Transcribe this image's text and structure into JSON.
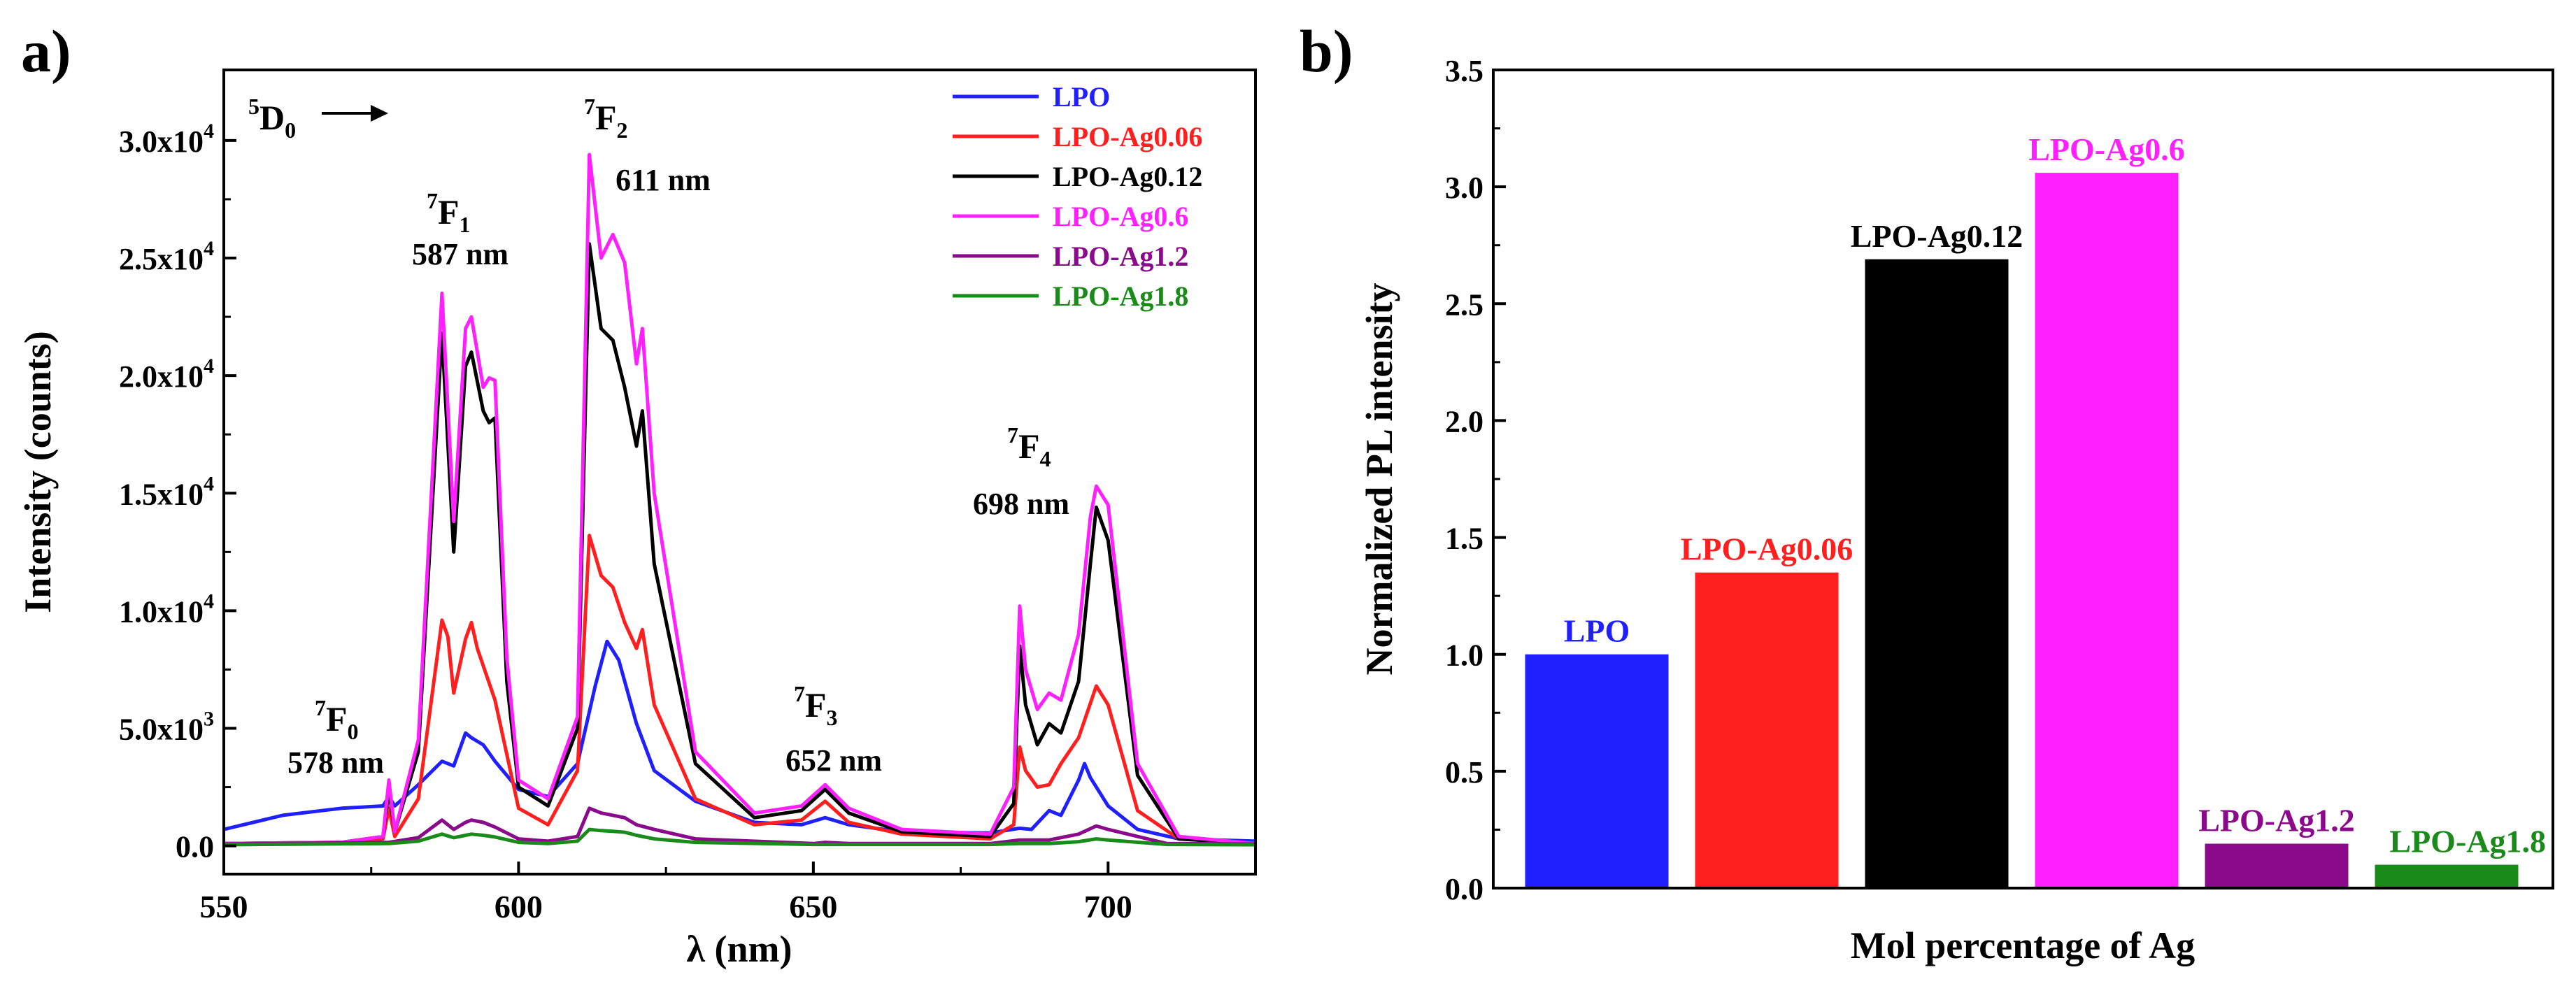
{
  "chart_data": [
    {
      "panel_label": "a)",
      "type": "line",
      "xlabel": "λ (nm)",
      "ylabel": "Intensity (counts)",
      "xlim": [
        550,
        725
      ],
      "ylim": [
        -1200,
        33000
      ],
      "xticks": [
        550,
        600,
        650,
        700
      ],
      "yticks": [
        {
          "value": 0,
          "label": "0.0"
        },
        {
          "value": 5000,
          "label": "5.0x10",
          "exp": "3"
        },
        {
          "value": 10000,
          "label": "1.0x10",
          "exp": "4"
        },
        {
          "value": 15000,
          "label": "1.5x10",
          "exp": "4"
        },
        {
          "value": 20000,
          "label": "2.0x10",
          "exp": "4"
        },
        {
          "value": 25000,
          "label": "2.5x10",
          "exp": "4"
        },
        {
          "value": 30000,
          "label": "3.0x10",
          "exp": "4"
        }
      ],
      "grid": false,
      "legend_position": "top-right",
      "series": [
        {
          "name": "LPO",
          "color": "#1f1fff",
          "x": [
            550,
            560,
            570,
            577,
            578,
            579,
            583,
            587,
            589,
            591,
            592,
            594,
            596,
            600,
            605,
            610,
            613,
            615,
            617,
            620,
            623,
            630,
            640,
            648,
            652,
            656,
            665,
            680,
            685,
            687,
            690,
            692,
            695,
            696,
            697,
            700,
            705,
            712,
            725
          ],
          "y": [
            700,
            1300,
            1600,
            1700,
            2100,
            1700,
            2600,
            3600,
            3400,
            4800,
            4600,
            4300,
            3600,
            2400,
            2100,
            3500,
            6800,
            8700,
            7900,
            5200,
            3200,
            1900,
            1000,
            900,
            1200,
            900,
            600,
            550,
            750,
            700,
            1500,
            1300,
            2800,
            3500,
            2900,
            1700,
            700,
            300,
            200
          ]
        },
        {
          "name": "LPO-Ag0.06",
          "color": "#ff1f1f",
          "x": [
            550,
            570,
            577,
            578,
            579,
            583,
            587,
            588,
            589,
            591,
            592,
            593,
            596,
            600,
            605,
            610,
            612,
            614,
            616,
            618,
            620,
            621,
            623,
            630,
            640,
            648,
            652,
            656,
            665,
            680,
            684,
            685,
            686,
            688,
            690,
            692,
            695,
            698,
            700,
            705,
            712,
            725
          ],
          "y": [
            100,
            150,
            300,
            1600,
            400,
            2000,
            9600,
            8900,
            6500,
            8800,
            9500,
            8400,
            6200,
            1600,
            900,
            3200,
            13200,
            11500,
            11000,
            9500,
            8400,
            9200,
            6000,
            2000,
            900,
            1100,
            1900,
            1000,
            500,
            300,
            900,
            4200,
            3200,
            2500,
            2600,
            3500,
            4600,
            6800,
            6000,
            1500,
            300,
            100
          ]
        },
        {
          "name": "LPO-Ag0.12",
          "color": "#000000",
          "x": [
            550,
            570,
            577,
            578,
            579,
            583,
            587,
            589,
            591,
            592,
            594,
            595,
            596,
            598,
            600,
            605,
            610,
            612,
            614,
            616,
            618,
            620,
            621,
            623,
            630,
            640,
            648,
            652,
            656,
            665,
            680,
            684,
            685,
            686,
            688,
            690,
            692,
            695,
            697,
            698,
            700,
            705,
            712,
            725
          ],
          "y": [
            100,
            150,
            400,
            2400,
            600,
            4000,
            21800,
            12500,
            20400,
            21000,
            18500,
            18000,
            18200,
            7000,
            2500,
            1700,
            5000,
            25600,
            22000,
            21500,
            19500,
            17000,
            18500,
            12000,
            3500,
            1200,
            1500,
            2400,
            1400,
            600,
            400,
            1800,
            8500,
            6000,
            4300,
            5200,
            4800,
            7000,
            12000,
            14400,
            13000,
            3000,
            300,
            100
          ]
        },
        {
          "name": "LPO-Ag0.6",
          "color": "#ff1fff",
          "x": [
            550,
            570,
            577,
            578,
            579,
            583,
            587,
            589,
            591,
            592,
            594,
            595,
            596,
            598,
            600,
            605,
            610,
            612,
            614,
            616,
            618,
            620,
            621,
            623,
            630,
            640,
            648,
            652,
            656,
            665,
            680,
            684,
            685,
            686,
            688,
            690,
            692,
            695,
            697,
            698,
            700,
            705,
            712,
            725
          ],
          "y": [
            100,
            150,
            400,
            2800,
            600,
            4500,
            23500,
            13800,
            22000,
            22500,
            19500,
            19900,
            19800,
            8000,
            2800,
            2000,
            5500,
            29400,
            25000,
            26000,
            24800,
            20500,
            22000,
            15000,
            4000,
            1400,
            1700,
            2600,
            1600,
            700,
            500,
            2500,
            10200,
            7500,
            5800,
            6500,
            6200,
            9000,
            14000,
            15300,
            14500,
            3500,
            400,
            100
          ]
        },
        {
          "name": "LPO-Ag1.2",
          "color": "#8b0a8b",
          "x": [
            550,
            578,
            583,
            587,
            589,
            591,
            592,
            594,
            596,
            600,
            605,
            610,
            612,
            614,
            616,
            618,
            620,
            623,
            630,
            650,
            652,
            656,
            680,
            685,
            690,
            695,
            698,
            700,
            710,
            725
          ],
          "y": [
            80,
            150,
            350,
            1100,
            700,
            1000,
            1100,
            1000,
            800,
            300,
            200,
            400,
            1600,
            1400,
            1300,
            1200,
            900,
            700,
            300,
            100,
            150,
            100,
            100,
            250,
            250,
            500,
            850,
            700,
            100,
            80
          ]
        },
        {
          "name": "LPO-Ag1.8",
          "color": "#1a8a1a",
          "x": [
            550,
            578,
            583,
            587,
            589,
            591,
            592,
            594,
            596,
            600,
            605,
            610,
            612,
            614,
            616,
            618,
            620,
            623,
            630,
            650,
            680,
            685,
            690,
            695,
            698,
            700,
            710,
            725
          ],
          "y": [
            50,
            100,
            200,
            500,
            350,
            450,
            500,
            450,
            380,
            150,
            100,
            200,
            700,
            650,
            620,
            580,
            450,
            300,
            150,
            60,
            60,
            100,
            100,
            180,
            300,
            250,
            60,
            50
          ]
        }
      ],
      "annotations": [
        {
          "text": "⁵D₀ →",
          "base": "D",
          "sup": "5",
          "sub": "0",
          "arrow": true
        },
        {
          "base": "F",
          "sup": "7",
          "sub": "0",
          "text": "578 nm"
        },
        {
          "base": "F",
          "sup": "7",
          "sub": "1",
          "text": "587 nm"
        },
        {
          "base": "F",
          "sup": "7",
          "sub": "2",
          "text": "611 nm"
        },
        {
          "base": "F",
          "sup": "7",
          "sub": "3",
          "text": "652 nm"
        },
        {
          "base": "F",
          "sup": "7",
          "sub": "4",
          "text": "698 nm"
        }
      ]
    },
    {
      "panel_label": "b)",
      "type": "bar",
      "xlabel": "Mol percentage of Ag",
      "ylabel": "Normalized PL intensity",
      "ylim": [
        0,
        3.5
      ],
      "yticks": [
        "0.0",
        "0.5",
        "1.0",
        "1.5",
        "2.0",
        "2.5",
        "3.0",
        "3.5"
      ],
      "grid": false,
      "categories": [
        "LPO",
        "LPO-Ag0.06",
        "LPO-Ag0.12",
        "LPO-Ag0.6",
        "LPO-Ag1.2",
        "LPO-Ag1.8"
      ],
      "values": [
        1.0,
        1.35,
        2.69,
        3.06,
        0.19,
        0.1
      ],
      "colors": [
        "#1f1fff",
        "#ff1f1f",
        "#000000",
        "#ff1fff",
        "#8b0a8b",
        "#1a8a1a"
      ]
    }
  ]
}
